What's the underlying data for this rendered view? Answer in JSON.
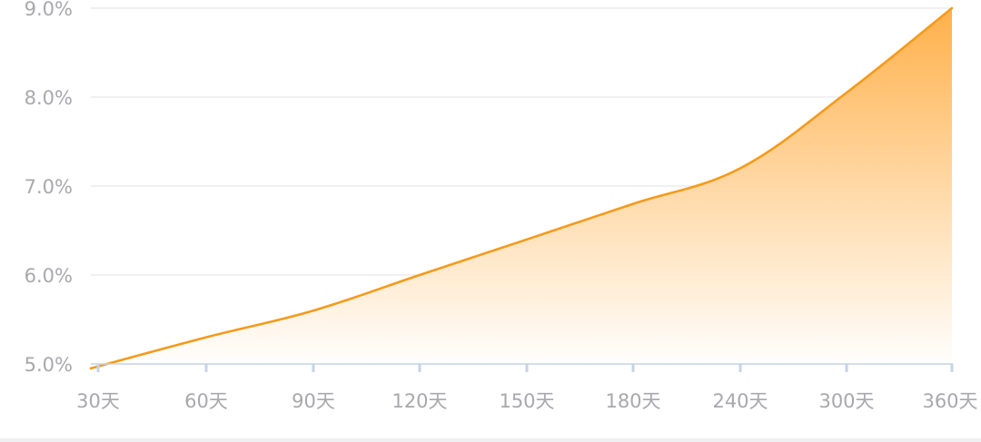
{
  "chart_data": {
    "type": "area",
    "categories": [
      "30天",
      "60天",
      "90天",
      "120天",
      "150天",
      "180天",
      "240天",
      "300天",
      "360天"
    ],
    "series": [
      {
        "values": [
          4.95,
          5.3,
          5.6,
          6.0,
          6.4,
          6.8,
          7.2,
          8.05,
          9.0
        ]
      }
    ],
    "ylim": [
      5.0,
      9.0
    ],
    "yticks": [
      "5.0%",
      "6.0%",
      "7.0%",
      "8.0%",
      "9.0%"
    ],
    "grid": true,
    "colors": {
      "line": "#f59a1a",
      "fill_top": "#ffac40",
      "fill_bottom": "#ffffff",
      "grid": "#e6e8ec",
      "axis": "#c4d4e6",
      "tick_text": "#a8a8ad"
    }
  }
}
